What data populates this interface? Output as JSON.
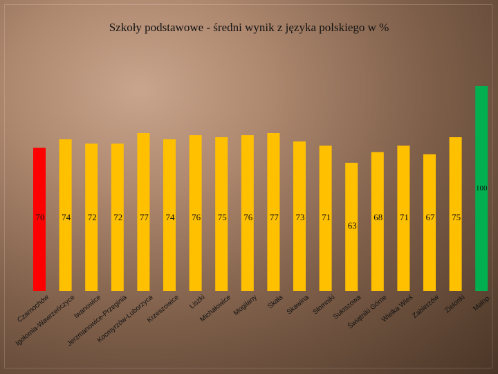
{
  "chart_data": {
    "type": "bar",
    "title": "Szkoły podstawowe - średni wynik z języka polskiego w %",
    "xlabel": "",
    "ylabel": "",
    "categories": [
      "Czarnochów",
      "Igołomia-Wawrzeńczyce",
      "Iwanowice",
      "Jerzmanowice-Przeginia",
      "Kocmyrzów-Luborzyca",
      "Krzeszowice",
      "Liszki",
      "Michałowice",
      "Mogilany",
      "Skała",
      "Skawina",
      "Słomniki",
      "Sułoszowa",
      "Świątniki Górne",
      "Wielka Wieś",
      "Zabierzów",
      "Zielonki",
      "Małop."
    ],
    "values": [
      70,
      74,
      72,
      72,
      77,
      74,
      76,
      75,
      76,
      77,
      73,
      71,
      63,
      68,
      71,
      67,
      75,
      100
    ],
    "value_labels": [
      "70",
      "74",
      "72",
      "72",
      "77",
      "74",
      "76",
      "75",
      "76",
      "77",
      "73",
      "71",
      "63",
      "68",
      "71",
      "67",
      "75",
      ""
    ],
    "reference_label": "100",
    "ylim": [
      0,
      100
    ],
    "grid": false,
    "legend": "none",
    "colors": {
      "highlight_low": "#ff0000",
      "default": "#ffc000",
      "highlight_total": "#00b050"
    },
    "bar_colors": [
      "highlight_low",
      "default",
      "default",
      "default",
      "default",
      "default",
      "default",
      "default",
      "default",
      "default",
      "default",
      "default",
      "default",
      "default",
      "default",
      "default",
      "default",
      "highlight_total"
    ]
  }
}
